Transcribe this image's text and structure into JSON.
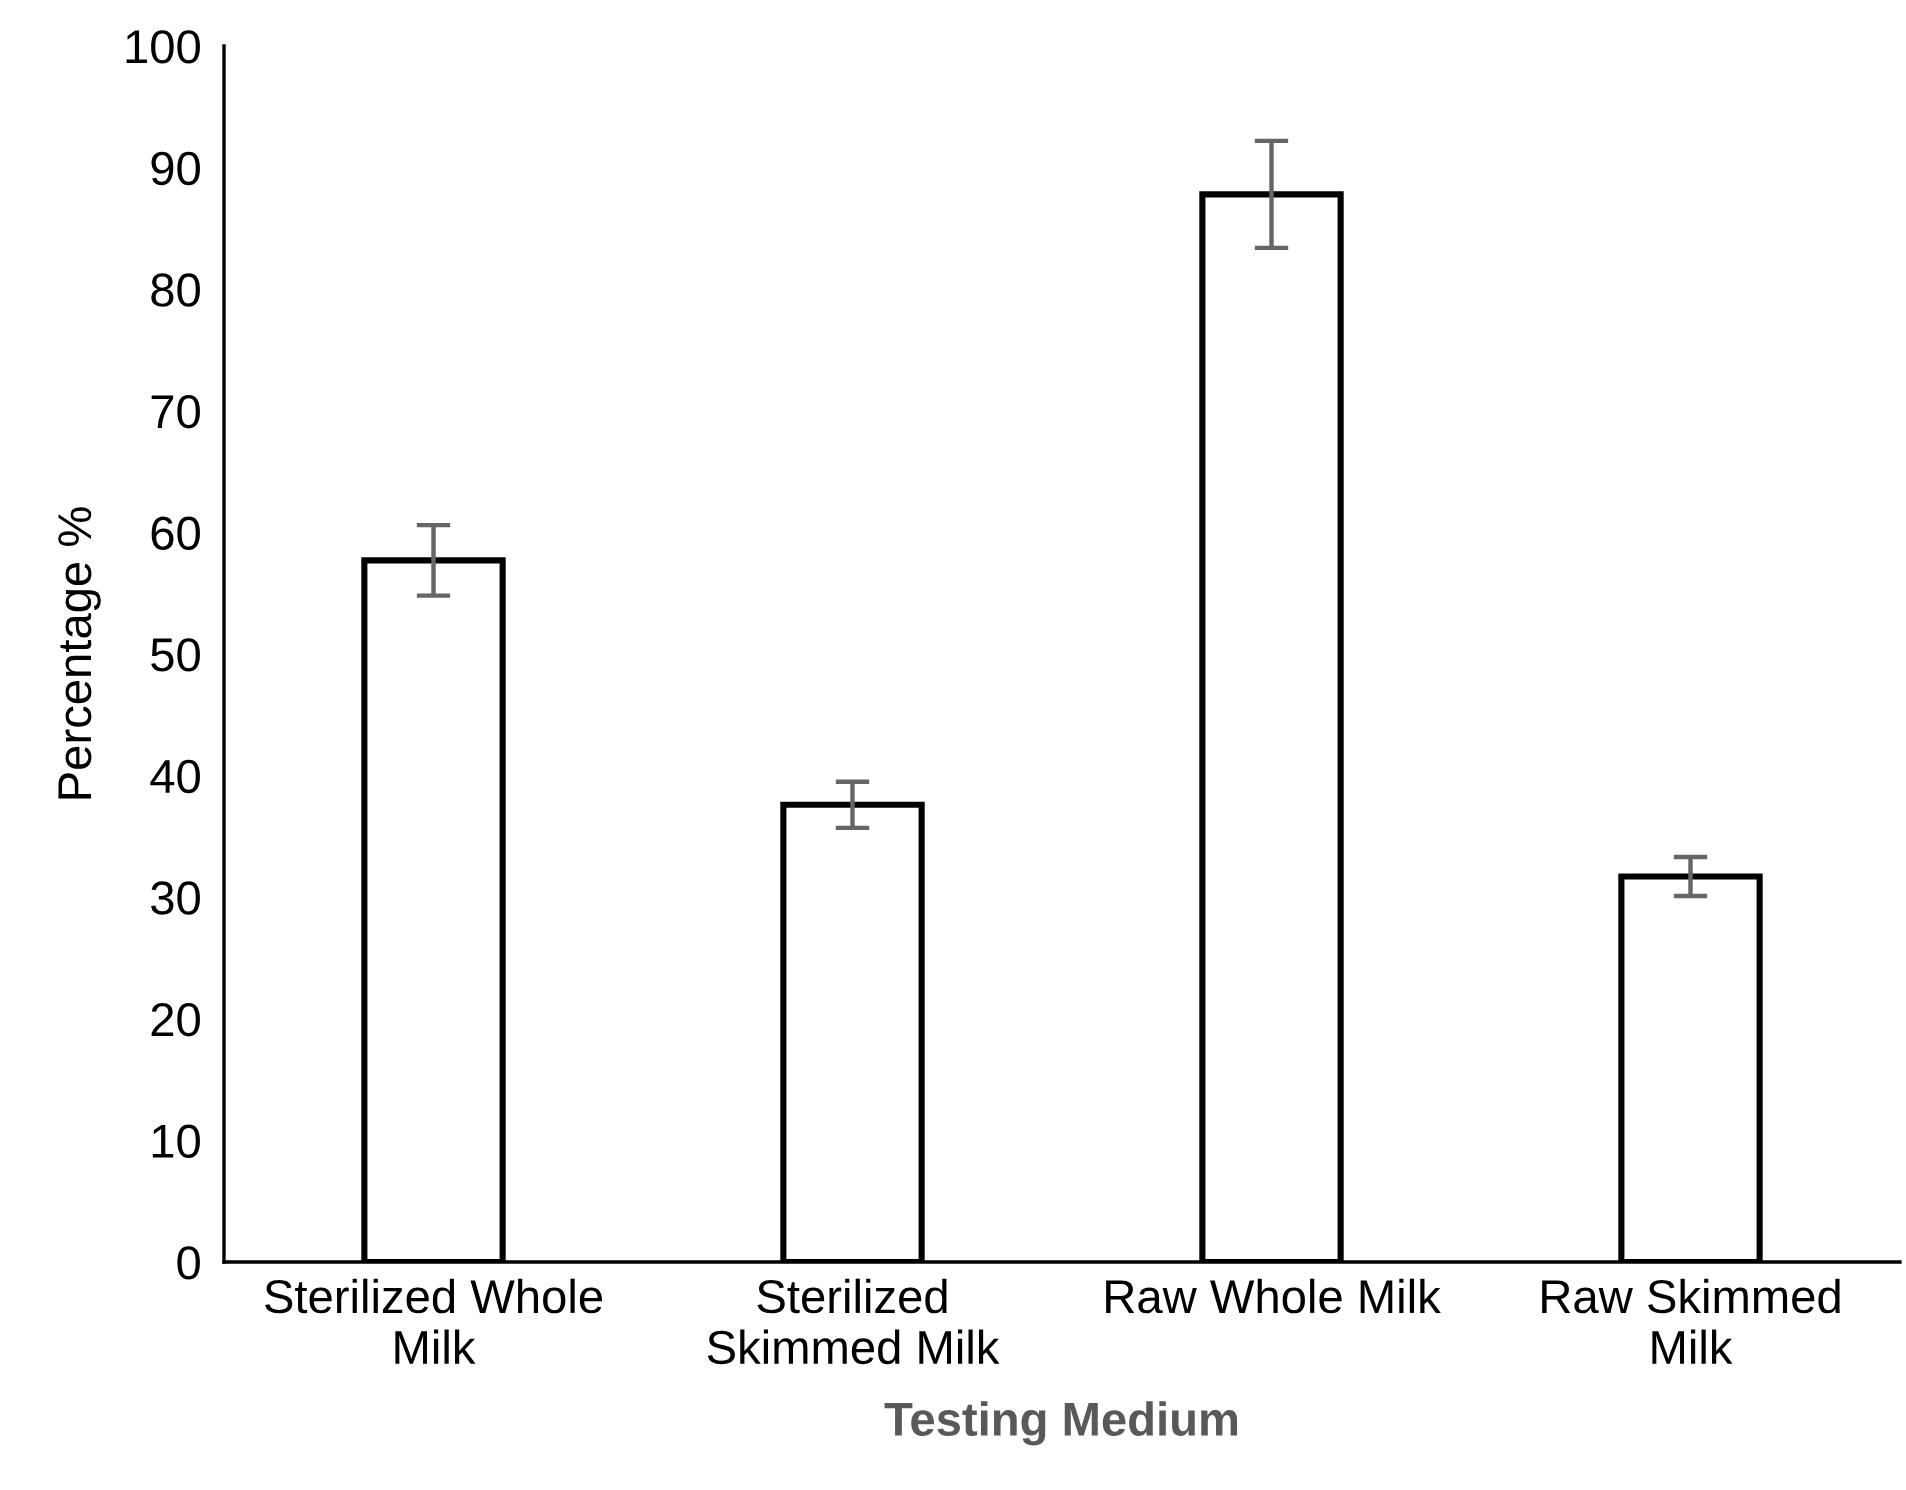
{
  "chart_data": {
    "type": "bar",
    "categories": [
      "Sterilized Whole\nMilk",
      "Sterilized\nSkimmed Milk",
      "Raw Whole Milk",
      "Raw Skimmed\nMilk"
    ],
    "values": [
      57.7,
      37.6,
      87.8,
      31.7
    ],
    "errors": [
      2.9,
      1.9,
      4.4,
      1.6
    ],
    "color": "#ffffff",
    "xlabel": "Testing Medium",
    "ylabel": "Percentage %",
    "ylim": [
      0,
      100
    ],
    "yticks": [
      0,
      10,
      20,
      30,
      40,
      50,
      60,
      70,
      80,
      90,
      100
    ],
    "grid": false,
    "legend": false
  }
}
